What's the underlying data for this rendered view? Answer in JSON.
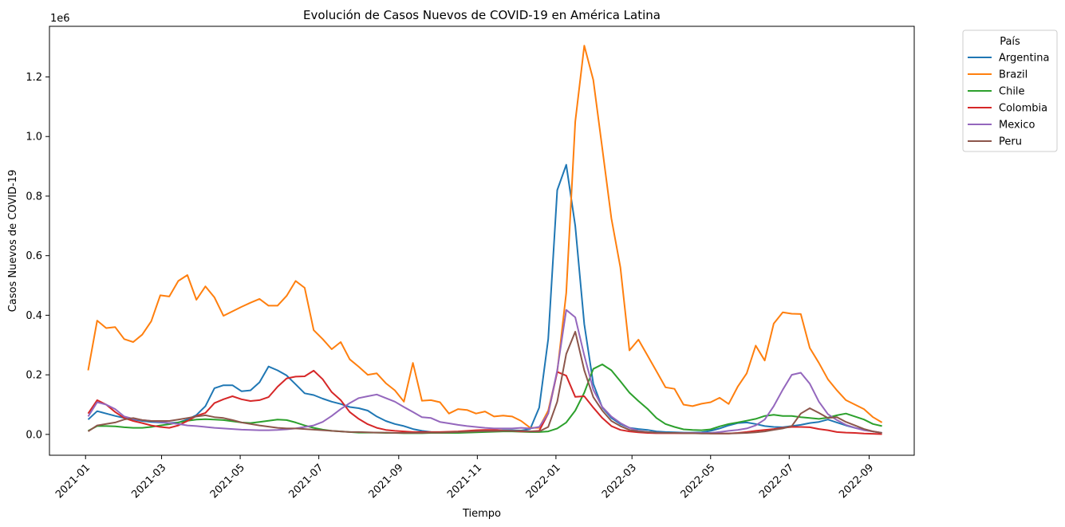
{
  "chart_data": {
    "type": "line",
    "title": "Evolución de Casos Nuevos de COVID-19 en América Latina",
    "xlabel": "Tiempo",
    "ylabel": "Casos Nuevos de COVID-19",
    "y_offset_label": "1e6",
    "ylim": [
      -70000,
      1370000
    ],
    "xlim": [
      "2020-12-04",
      "2022-10-06"
    ],
    "y_ticks": [
      0,
      200000,
      400000,
      600000,
      800000,
      1000000,
      1200000
    ],
    "y_tick_labels": [
      "0.0",
      "0.2",
      "0.4",
      "0.6",
      "0.8",
      "1.0",
      "1.2"
    ],
    "x_ticks": [
      "2021-01-01",
      "2021-03-01",
      "2021-05-01",
      "2021-07-01",
      "2021-09-01",
      "2021-11-01",
      "2022-01-01",
      "2022-03-01",
      "2022-05-01",
      "2022-07-01",
      "2022-09-01"
    ],
    "x_tick_labels": [
      "2021-01",
      "2021-03",
      "2021-05",
      "2021-07",
      "2021-09",
      "2021-11",
      "2022-01",
      "2022-03",
      "2022-05",
      "2022-07",
      "2022-09"
    ],
    "legend_title": "País",
    "legend_position": "outside top-right",
    "grid": false,
    "x": [
      "2021-01-03",
      "2021-01-10",
      "2021-01-17",
      "2021-01-24",
      "2021-01-31",
      "2021-02-07",
      "2021-02-14",
      "2021-02-21",
      "2021-02-28",
      "2021-03-07",
      "2021-03-14",
      "2021-03-21",
      "2021-03-28",
      "2021-04-04",
      "2021-04-11",
      "2021-04-18",
      "2021-04-25",
      "2021-05-02",
      "2021-05-09",
      "2021-05-16",
      "2021-05-23",
      "2021-05-30",
      "2021-06-06",
      "2021-06-13",
      "2021-06-20",
      "2021-06-27",
      "2021-07-04",
      "2021-07-11",
      "2021-07-18",
      "2021-07-25",
      "2021-08-01",
      "2021-08-08",
      "2021-08-15",
      "2021-08-22",
      "2021-08-29",
      "2021-09-05",
      "2021-09-12",
      "2021-09-19",
      "2021-09-26",
      "2021-10-03",
      "2021-10-10",
      "2021-10-17",
      "2021-10-24",
      "2021-10-31",
      "2021-11-07",
      "2021-11-14",
      "2021-11-21",
      "2021-11-28",
      "2021-12-05",
      "2021-12-12",
      "2021-12-19",
      "2021-12-26",
      "2022-01-02",
      "2022-01-09",
      "2022-01-16",
      "2022-01-23",
      "2022-01-30",
      "2022-02-06",
      "2022-02-13",
      "2022-02-20",
      "2022-02-27",
      "2022-03-06",
      "2022-03-13",
      "2022-03-20",
      "2022-03-27",
      "2022-04-03",
      "2022-04-10",
      "2022-04-17",
      "2022-04-24",
      "2022-05-01",
      "2022-05-08",
      "2022-05-15",
      "2022-05-22",
      "2022-05-29",
      "2022-06-05",
      "2022-06-12",
      "2022-06-19",
      "2022-06-26",
      "2022-07-03",
      "2022-07-10",
      "2022-07-17",
      "2022-07-24",
      "2022-07-31",
      "2022-08-07",
      "2022-08-14",
      "2022-08-21",
      "2022-08-28",
      "2022-09-04",
      "2022-09-11"
    ],
    "series": [
      {
        "name": "Argentina",
        "color": "#1f77b4",
        "values": [
          50000,
          78000,
          70000,
          62000,
          55000,
          50000,
          45000,
          42000,
          40000,
          38000,
          40000,
          50000,
          65000,
          95000,
          155000,
          165000,
          165000,
          145000,
          148000,
          175000,
          228000,
          215000,
          198000,
          168000,
          138000,
          132000,
          120000,
          110000,
          102000,
          92000,
          88000,
          80000,
          60000,
          45000,
          35000,
          28000,
          18000,
          12000,
          8000,
          7000,
          6000,
          6000,
          7000,
          8000,
          10000,
          12000,
          14000,
          14000,
          13000,
          18000,
          90000,
          320000,
          820000,
          905000,
          700000,
          370000,
          170000,
          90000,
          55000,
          35000,
          22000,
          18000,
          15000,
          10000,
          8000,
          7000,
          6000,
          6000,
          7000,
          12000,
          20000,
          30000,
          38000,
          40000,
          35000,
          28000,
          25000,
          24000,
          28000,
          32000,
          38000,
          42000,
          50000,
          40000,
          30000,
          22000,
          15000,
          10000,
          5000
        ]
      },
      {
        "name": "Brazil",
        "color": "#ff7f0e",
        "values": [
          215000,
          382000,
          357000,
          360000,
          320000,
          310000,
          335000,
          380000,
          467000,
          463000,
          515000,
          535000,
          452000,
          497000,
          460000,
          398000,
          413000,
          428000,
          442000,
          455000,
          432000,
          432000,
          465000,
          515000,
          492000,
          350000,
          320000,
          286000,
          310000,
          252000,
          227000,
          200000,
          205000,
          172000,
          148000,
          110000,
          240000,
          113000,
          115000,
          108000,
          70000,
          85000,
          82000,
          70000,
          77000,
          60000,
          63000,
          60000,
          45000,
          22000,
          22000,
          80000,
          210000,
          475000,
          1050000,
          1305000,
          1190000,
          960000,
          725000,
          560000,
          282000,
          318000,
          265000,
          212000,
          158000,
          153000,
          100000,
          95000,
          103000,
          108000,
          123000,
          102000,
          160000,
          205000,
          298000,
          248000,
          372000,
          410000,
          405000,
          404000,
          290000,
          240000,
          185000,
          148000,
          115000,
          100000,
          85000,
          58000,
          40000
        ]
      },
      {
        "name": "Chile",
        "color": "#2ca02c",
        "values": [
          12000,
          28000,
          28000,
          27000,
          24000,
          22000,
          22000,
          25000,
          30000,
          34000,
          40000,
          46000,
          50000,
          51000,
          50000,
          48000,
          44000,
          40000,
          38000,
          42000,
          46000,
          50000,
          48000,
          40000,
          30000,
          22000,
          16000,
          12000,
          10000,
          8000,
          6000,
          6000,
          6000,
          5000,
          5000,
          4000,
          4000,
          4000,
          5000,
          5000,
          5000,
          5000,
          6000,
          7000,
          8000,
          9000,
          10000,
          10000,
          9000,
          8000,
          8000,
          10000,
          20000,
          40000,
          80000,
          140000,
          220000,
          235000,
          215000,
          178000,
          140000,
          112000,
          86000,
          55000,
          35000,
          25000,
          17000,
          15000,
          14000,
          17000,
          27000,
          35000,
          40000,
          46000,
          52000,
          62000,
          66000,
          62000,
          62000,
          58000,
          55000,
          52000,
          56000,
          64000,
          70000,
          60000,
          50000,
          35000,
          28000
        ]
      },
      {
        "name": "Colombia",
        "color": "#d62728",
        "values": [
          70000,
          115000,
          100000,
          75000,
          55000,
          45000,
          38000,
          30000,
          25000,
          22000,
          30000,
          45000,
          62000,
          72000,
          105000,
          118000,
          128000,
          118000,
          112000,
          115000,
          125000,
          160000,
          188000,
          194000,
          195000,
          214000,
          185000,
          142000,
          115000,
          75000,
          52000,
          34000,
          22000,
          15000,
          12000,
          10000,
          8000,
          8000,
          8000,
          8000,
          9000,
          10000,
          12000,
          14000,
          15000,
          15000,
          13000,
          12000,
          10000,
          10000,
          12000,
          70000,
          210000,
          197000,
          126000,
          128000,
          90000,
          55000,
          28000,
          15000,
          10000,
          7000,
          5000,
          4000,
          4000,
          4000,
          4000,
          4000,
          4000,
          3000,
          3000,
          3000,
          5000,
          8000,
          12000,
          15000,
          18000,
          22000,
          25000,
          25000,
          24000,
          18000,
          14000,
          8000,
          6000,
          5000,
          3000,
          2000,
          1000
        ]
      },
      {
        "name": "Mexico",
        "color": "#9467bd",
        "values": [
          60000,
          108000,
          100000,
          85000,
          60000,
          52000,
          48000,
          45000,
          42000,
          38000,
          35000,
          30000,
          28000,
          25000,
          22000,
          20000,
          18000,
          16000,
          15000,
          14000,
          14000,
          15000,
          17000,
          20000,
          25000,
          30000,
          42000,
          62000,
          85000,
          105000,
          122000,
          128000,
          134000,
          122000,
          110000,
          92000,
          75000,
          58000,
          55000,
          42000,
          37000,
          32000,
          28000,
          25000,
          22000,
          20000,
          20000,
          20000,
          22000,
          20000,
          25000,
          70000,
          215000,
          418000,
          393000,
          265000,
          150000,
          92000,
          60000,
          38000,
          22000,
          12000,
          8000,
          6000,
          5000,
          5000,
          5000,
          5000,
          5000,
          5000,
          8000,
          12000,
          15000,
          20000,
          30000,
          50000,
          95000,
          150000,
          200000,
          207000,
          170000,
          110000,
          68000,
          48000,
          32000,
          22000,
          14000,
          10000,
          5000
        ]
      },
      {
        "name": "Peru",
        "color": "#8c564b",
        "values": [
          10000,
          30000,
          35000,
          40000,
          50000,
          55000,
          48000,
          45000,
          45000,
          45000,
          50000,
          55000,
          60000,
          64000,
          58000,
          55000,
          48000,
          40000,
          35000,
          30000,
          26000,
          22000,
          20000,
          20000,
          18000,
          16000,
          14000,
          12000,
          10000,
          8000,
          8000,
          7000,
          6000,
          6000,
          5000,
          5000,
          5000,
          5000,
          6000,
          6000,
          7000,
          8000,
          9000,
          10000,
          11000,
          11000,
          12000,
          12000,
          12000,
          10000,
          10000,
          25000,
          110000,
          270000,
          345000,
          215000,
          125000,
          80000,
          45000,
          28000,
          15000,
          10000,
          8000,
          6000,
          5000,
          5000,
          4000,
          4000,
          3000,
          3000,
          3000,
          3000,
          4000,
          5000,
          7000,
          10000,
          15000,
          20000,
          28000,
          70000,
          88000,
          72000,
          55000,
          58000,
          42000,
          30000,
          18000,
          10000,
          5000
        ]
      }
    ]
  }
}
